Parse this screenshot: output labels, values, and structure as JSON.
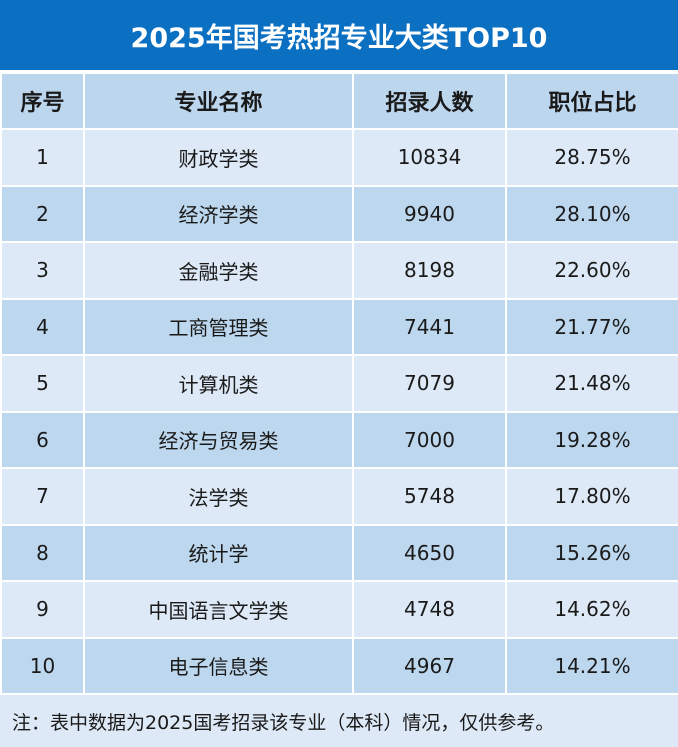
{
  "title": "2025年国考热招专业大类TOP10",
  "colors": {
    "title_bg": "#0b6fc2",
    "header_bg": "#bcd6ee",
    "row_light": "#dde9f6",
    "row_dark": "#bdd7ee"
  },
  "headers": [
    "序号",
    "专业名称",
    "招录人数",
    "职位占比"
  ],
  "rows": [
    [
      "1",
      "财政学类",
      "10834",
      "28.75%"
    ],
    [
      "2",
      "经济学类",
      "9940",
      "28.10%"
    ],
    [
      "3",
      "金融学类",
      "8198",
      "22.60%"
    ],
    [
      "4",
      "工商管理类",
      "7441",
      "21.77%"
    ],
    [
      "5",
      "计算机类",
      "7079",
      "21.48%"
    ],
    [
      "6",
      "经济与贸易类",
      "7000",
      "19.28%"
    ],
    [
      "7",
      "法学类",
      "5748",
      "17.80%"
    ],
    [
      "8",
      "统计学",
      "4650",
      "15.26%"
    ],
    [
      "9",
      "中国语言文学类",
      "4748",
      "14.62%"
    ],
    [
      "10",
      "电子信息类",
      "4967",
      "14.21%"
    ]
  ],
  "note": "注：表中数据为2025国考招录该专业（本科）情况，仅供参考。"
}
